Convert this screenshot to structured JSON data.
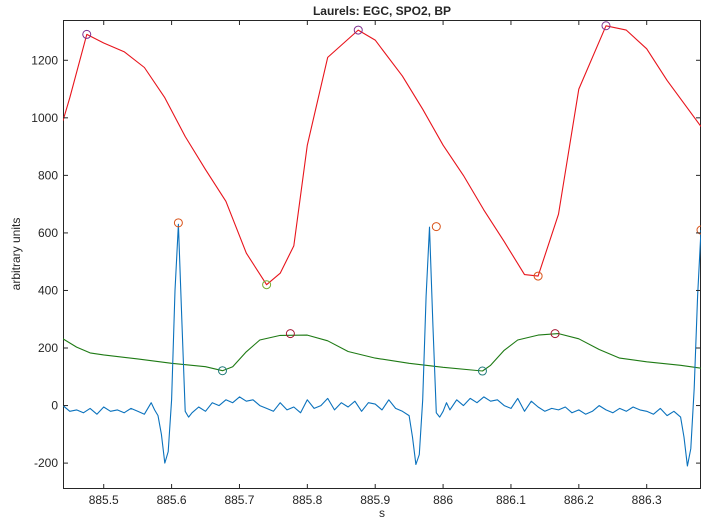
{
  "chart_data": {
    "type": "line",
    "title": "Laurels: EGC, SPO2, BP",
    "xlabel": "s",
    "ylabel": "arbitrary units",
    "xlim": [
      885.44,
      886.38
    ],
    "ylim": [
      -290,
      1340
    ],
    "xticks": [
      885.5,
      885.6,
      885.7,
      885.8,
      885.9,
      886,
      886.1,
      886.2,
      886.3
    ],
    "xtick_labels": [
      "885.5",
      "885.6",
      "885.7",
      "885.8",
      "885.9",
      "886",
      "886.1",
      "886.2",
      "886.3"
    ],
    "yticks": [
      -200,
      0,
      200,
      400,
      600,
      800,
      1000,
      1200
    ],
    "ytick_labels": [
      "-200",
      "0",
      "200",
      "400",
      "600",
      "800",
      "1000",
      "1200"
    ],
    "grid": false,
    "colors": {
      "bp": "#e8141c",
      "spo2": "#1e7a14",
      "ecg": "#0b72bd",
      "marker_purple": "#7e2f8e",
      "marker_orange": "#d95319",
      "marker_green": "#77ac30",
      "marker_teal": "#1f7a7a",
      "marker_red": "#a2142f"
    },
    "series": [
      {
        "key": "bp",
        "color": "#e8141c",
        "x": [
          885.44,
          885.45,
          885.475,
          885.5,
          885.53,
          885.56,
          885.59,
          885.62,
          885.65,
          885.68,
          885.71,
          885.74,
          885.76,
          885.78,
          885.8,
          885.83,
          885.875,
          885.9,
          885.94,
          885.97,
          886.0,
          886.03,
          886.06,
          886.09,
          886.12,
          886.14,
          886.17,
          886.2,
          886.24,
          886.27,
          886.3,
          886.33,
          886.38
        ],
        "y": [
          990,
          1070,
          1290,
          1260,
          1230,
          1175,
          1070,
          935,
          820,
          710,
          530,
          420,
          460,
          555,
          905,
          1210,
          1305,
          1270,
          1145,
          1030,
          905,
          800,
          680,
          570,
          455,
          450,
          665,
          1100,
          1320,
          1305,
          1240,
          1130,
          970
        ]
      },
      {
        "key": "spo2",
        "color": "#1e7a14",
        "x": [
          885.44,
          885.46,
          885.48,
          885.5,
          885.55,
          885.6,
          885.65,
          885.675,
          885.69,
          885.71,
          885.73,
          885.76,
          885.8,
          885.83,
          885.86,
          885.9,
          885.95,
          886.0,
          886.05,
          886.058,
          886.07,
          886.09,
          886.11,
          886.14,
          886.17,
          886.2,
          886.23,
          886.26,
          886.3,
          886.35,
          886.38
        ],
        "y": [
          232,
          203,
          183,
          176,
          162,
          147,
          135,
          121,
          135,
          187,
          228,
          244,
          245,
          225,
          188,
          165,
          147,
          133,
          122,
          120,
          140,
          192,
          228,
          245,
          250,
          232,
          195,
          165,
          152,
          140,
          130
        ]
      },
      {
        "key": "ecg",
        "color": "#0b72bd",
        "x": [
          885.44,
          885.45,
          885.46,
          885.47,
          885.48,
          885.49,
          885.5,
          885.51,
          885.52,
          885.53,
          885.54,
          885.55,
          885.56,
          885.57,
          885.575,
          885.58,
          885.585,
          885.59,
          885.595,
          885.6,
          885.605,
          885.61,
          885.615,
          885.62,
          885.625,
          885.63,
          885.64,
          885.65,
          885.66,
          885.67,
          885.68,
          885.69,
          885.7,
          885.71,
          885.72,
          885.73,
          885.74,
          885.75,
          885.76,
          885.77,
          885.78,
          885.79,
          885.8,
          885.81,
          885.82,
          885.83,
          885.84,
          885.85,
          885.86,
          885.87,
          885.88,
          885.89,
          885.9,
          885.91,
          885.92,
          885.93,
          885.94,
          885.95,
          885.955,
          885.96,
          885.965,
          885.97,
          885.975,
          885.98,
          885.985,
          885.99,
          885.995,
          886.0,
          886.005,
          886.01,
          886.02,
          886.03,
          886.04,
          886.05,
          886.06,
          886.07,
          886.08,
          886.09,
          886.1,
          886.11,
          886.12,
          886.13,
          886.14,
          886.15,
          886.16,
          886.17,
          886.18,
          886.19,
          886.2,
          886.21,
          886.22,
          886.23,
          886.24,
          886.25,
          886.26,
          886.27,
          886.28,
          886.29,
          886.3,
          886.31,
          886.32,
          886.33,
          886.34,
          886.35,
          886.355,
          886.36,
          886.365,
          886.37,
          886.375,
          886.38
        ],
        "y": [
          0,
          -20,
          -15,
          -25,
          -10,
          -30,
          -5,
          -20,
          -15,
          -25,
          -10,
          -20,
          -30,
          10,
          -15,
          -35,
          -100,
          -200,
          -160,
          20,
          400,
          630,
          300,
          -20,
          -40,
          -25,
          -5,
          -20,
          10,
          0,
          20,
          10,
          30,
          15,
          20,
          0,
          -10,
          -20,
          10,
          -15,
          -5,
          -25,
          20,
          -10,
          0,
          25,
          -15,
          10,
          -5,
          15,
          -20,
          10,
          5,
          -15,
          20,
          -10,
          -20,
          -35,
          -110,
          -205,
          -170,
          20,
          380,
          620,
          280,
          -25,
          -40,
          -20,
          10,
          -15,
          20,
          0,
          25,
          10,
          30,
          15,
          20,
          0,
          -10,
          25,
          -20,
          15,
          -5,
          -20,
          -10,
          -15,
          -5,
          -25,
          -15,
          -30,
          -20,
          0,
          -15,
          -25,
          -10,
          -20,
          -5,
          -15,
          -20,
          -30,
          -10,
          -35,
          -20,
          -40,
          -110,
          -210,
          -150,
          60,
          380,
          610
        ]
      }
    ],
    "markers": [
      {
        "x": 885.475,
        "y": 1290,
        "color": "#7e2f8e"
      },
      {
        "x": 885.875,
        "y": 1305,
        "color": "#7e2f8e"
      },
      {
        "x": 886.24,
        "y": 1320,
        "color": "#7e2f8e"
      },
      {
        "x": 885.74,
        "y": 420,
        "color": "#77ac30"
      },
      {
        "x": 886.14,
        "y": 450,
        "color": "#d95319"
      },
      {
        "x": 885.61,
        "y": 635,
        "color": "#d95319"
      },
      {
        "x": 885.99,
        "y": 622,
        "color": "#d95319"
      },
      {
        "x": 886.38,
        "y": 610,
        "color": "#d95319"
      },
      {
        "x": 885.675,
        "y": 121,
        "color": "#1f7a7a"
      },
      {
        "x": 886.058,
        "y": 120,
        "color": "#1f7a7a"
      },
      {
        "x": 885.775,
        "y": 250,
        "color": "#a2142f"
      },
      {
        "x": 886.165,
        "y": 250,
        "color": "#a2142f"
      }
    ]
  }
}
